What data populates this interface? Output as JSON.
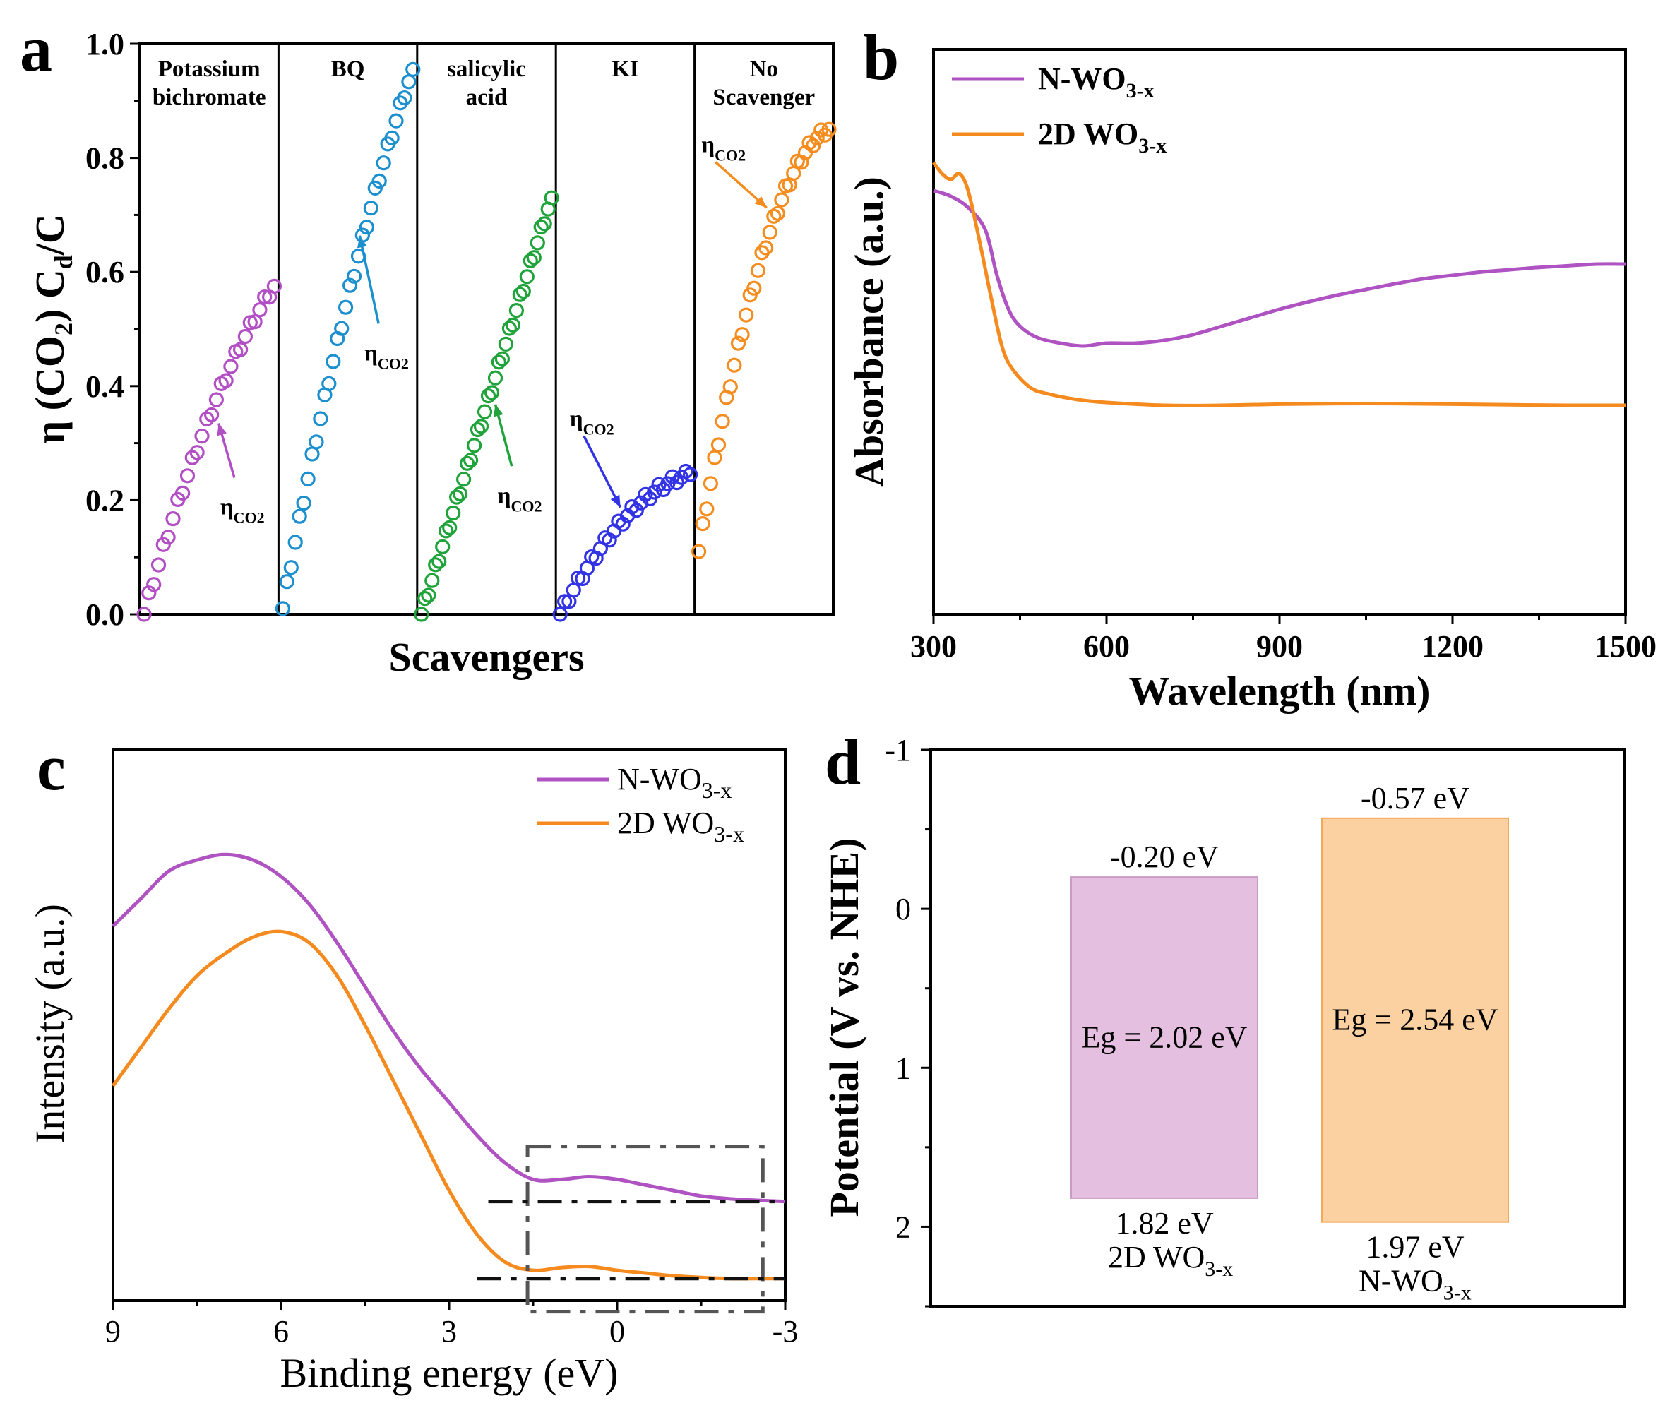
{
  "chart_data": [
    {
      "panel": "a",
      "type": "scatter",
      "xlabel": "Scavengers",
      "ylabel": "η (CO₂) Cd/C",
      "ylabel_parts": [
        "η (CO",
        "2",
        ") C",
        "d",
        "/C"
      ],
      "ylim": [
        0,
        1.0
      ],
      "yticks": [
        "0.0",
        "0.2",
        "0.4",
        "0.6",
        "0.8",
        "1.0"
      ],
      "series": [
        {
          "name": "Potassium bichromate",
          "label_lines": [
            "Potassium",
            "bichromate"
          ],
          "color": "#B24FC4",
          "start": 0.0,
          "end": 0.575,
          "bend": 0.4,
          "n": 28
        },
        {
          "name": "BQ",
          "label_lines": [
            "BQ"
          ],
          "color": "#1C8FCE",
          "start": 0.01,
          "end": 0.955,
          "bend": 0.3,
          "n": 32
        },
        {
          "name": "salicylic acid",
          "label_lines": [
            "salicylic",
            "acid"
          ],
          "color": "#1FA33A",
          "start": 0.0,
          "end": 0.73,
          "bend": 0.0,
          "n": 38
        },
        {
          "name": "KI",
          "label_lines": [
            "KI"
          ],
          "color": "#3333E6",
          "start": 0.0,
          "end": 0.245,
          "bend": 0.75,
          "n": 30
        },
        {
          "name": "No Scavenger",
          "label_lines": [
            "No",
            "Scavenger"
          ],
          "color": "#F58C1E",
          "start": 0.11,
          "end": 0.85,
          "bend": 0.85,
          "n": 34
        }
      ],
      "annotations": [
        {
          "series": "Potassium bichromate",
          "text": "η",
          "sub": "CO2"
        },
        {
          "series": "BQ",
          "text": "η",
          "sub": "CO2"
        },
        {
          "series": "salicylic acid",
          "text": "η",
          "sub": "CO2"
        },
        {
          "series": "KI",
          "text": "η",
          "sub": "CO2"
        },
        {
          "series": "No Scavenger",
          "text": "η",
          "sub": "CO2"
        }
      ]
    },
    {
      "panel": "b",
      "type": "line",
      "xlabel": "Wavelength (nm)",
      "ylabel": "Absorbance (a.u.)",
      "xlim": [
        300,
        1500
      ],
      "xticks": [
        300,
        600,
        900,
        1200,
        1500
      ],
      "ylim": [
        0,
        1
      ],
      "series": [
        {
          "name": "N-WO3-x",
          "name_parts": [
            "N-WO",
            "3-x"
          ],
          "color": "#B053C2",
          "x": [
            300,
            330,
            360,
            390,
            410,
            430,
            450,
            480,
            520,
            560,
            600,
            650,
            700,
            750,
            800,
            850,
            900,
            950,
            1000,
            1050,
            1100,
            1150,
            1200,
            1250,
            1300,
            1350,
            1400,
            1450,
            1500
          ],
          "y": [
            0.75,
            0.74,
            0.72,
            0.68,
            0.6,
            0.54,
            0.51,
            0.49,
            0.48,
            0.475,
            0.48,
            0.48,
            0.485,
            0.495,
            0.51,
            0.525,
            0.54,
            0.553,
            0.565,
            0.575,
            0.585,
            0.594,
            0.6,
            0.606,
            0.61,
            0.614,
            0.617,
            0.62,
            0.62
          ]
        },
        {
          "name": "2D WO3-x",
          "name_parts": [
            "2D WO",
            "3-x"
          ],
          "color": "#F58A1F",
          "x": [
            300,
            315,
            330,
            345,
            360,
            380,
            400,
            420,
            440,
            470,
            500,
            550,
            600,
            700,
            800,
            900,
            1000,
            1100,
            1200,
            1300,
            1400,
            1500
          ],
          "y": [
            0.8,
            0.78,
            0.77,
            0.78,
            0.75,
            0.66,
            0.56,
            0.47,
            0.43,
            0.4,
            0.39,
            0.38,
            0.375,
            0.37,
            0.37,
            0.372,
            0.373,
            0.373,
            0.372,
            0.371,
            0.37,
            0.37
          ]
        }
      ]
    },
    {
      "panel": "c",
      "type": "line",
      "xlabel": "Binding energy (eV)",
      "ylabel": "Intensity (a.u.)",
      "xlim": [
        9,
        -3
      ],
      "xticks": [
        "9",
        "6",
        "3",
        "0",
        "-3"
      ],
      "ylim": [
        0,
        1
      ],
      "series": [
        {
          "name": "N-WO3-x",
          "name_parts": [
            "N-WO",
            "3-x"
          ],
          "color": "#B053C2",
          "x": [
            9,
            8.5,
            8,
            7.5,
            7,
            6.5,
            6,
            5.5,
            5,
            4.5,
            4,
            3.5,
            3,
            2.5,
            2,
            1.5,
            1,
            0.5,
            0,
            -0.5,
            -1,
            -1.5,
            -2,
            -2.5,
            -3
          ],
          "y": [
            0.68,
            0.73,
            0.78,
            0.8,
            0.81,
            0.8,
            0.77,
            0.72,
            0.65,
            0.57,
            0.49,
            0.42,
            0.36,
            0.3,
            0.25,
            0.22,
            0.22,
            0.225,
            0.22,
            0.21,
            0.2,
            0.19,
            0.185,
            0.182,
            0.18
          ]
        },
        {
          "name": "2D WO3-x",
          "name_parts": [
            "2D WO",
            "3-x"
          ],
          "color": "#F58A1F",
          "x": [
            9,
            8.5,
            8,
            7.5,
            7,
            6.5,
            6,
            5.5,
            5,
            4.5,
            4,
            3.5,
            3,
            2.5,
            2,
            1.5,
            1,
            0.5,
            0,
            -0.5,
            -1,
            -1.5,
            -2,
            -2.5,
            -3
          ],
          "y": [
            0.39,
            0.46,
            0.53,
            0.59,
            0.63,
            0.66,
            0.67,
            0.65,
            0.59,
            0.5,
            0.4,
            0.3,
            0.2,
            0.12,
            0.07,
            0.055,
            0.06,
            0.062,
            0.055,
            0.05,
            0.045,
            0.042,
            0.04,
            0.04,
            0.04
          ]
        }
      ]
    },
    {
      "panel": "d",
      "type": "bar",
      "ylabel": "Potential (V vs. NHE)",
      "ylim": [
        -1,
        2.5
      ],
      "yticks": [
        "-1",
        "0",
        "1",
        "2"
      ],
      "bars": [
        {
          "name": "2D WO3-x",
          "name_parts": [
            "2D WO",
            "3-x"
          ],
          "cb": -0.2,
          "vb": 1.82,
          "cb_label": "-0.20 eV",
          "vb_label": "1.82 eV",
          "eg_label": "Eg = 2.02 eV",
          "fill": "#E4BFE0",
          "stroke": "#C99BC6",
          "label_color": "#C25BC0"
        },
        {
          "name": "N-WO3-x",
          "name_parts": [
            "N-WO",
            "3-x"
          ],
          "cb": -0.57,
          "vb": 1.97,
          "cb_label": "-0.57 eV",
          "vb_label": "1.97 eV",
          "eg_label": "Eg = 2.54 eV",
          "fill": "#FCD1A2",
          "stroke": "#F5A85A",
          "label_color": "#F58A1F"
        }
      ]
    }
  ],
  "panel_letters": [
    "a",
    "b",
    "c",
    "d"
  ]
}
